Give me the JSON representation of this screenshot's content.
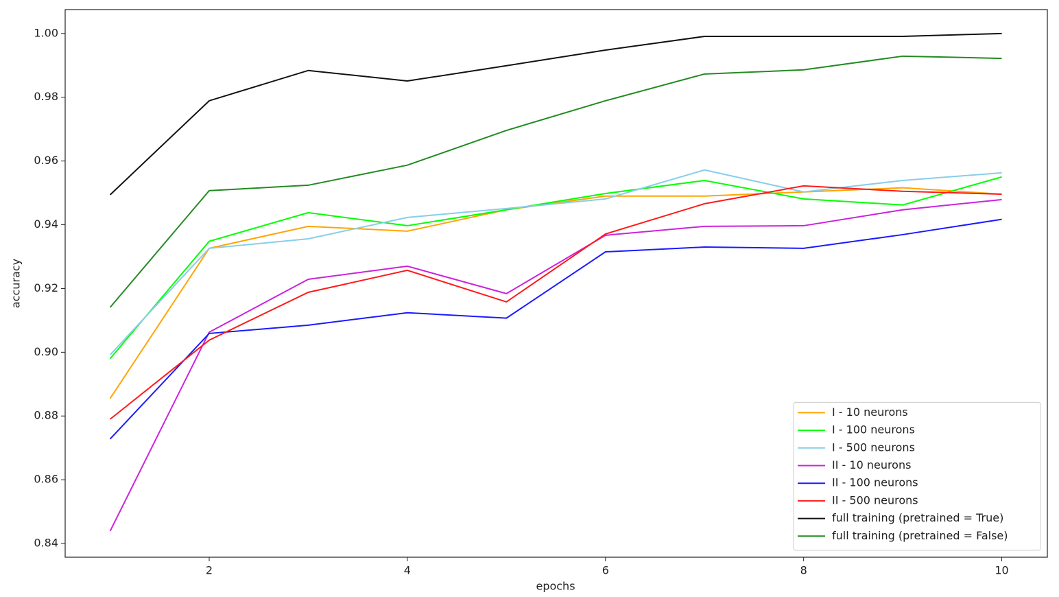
{
  "chart_data": {
    "type": "line",
    "xlabel": "epochs",
    "ylabel": "accuracy",
    "x": [
      1,
      2,
      3,
      4,
      5,
      6,
      7,
      8,
      9,
      10
    ],
    "xlim": [
      0.546,
      10.46
    ],
    "xticks": [
      2,
      4,
      6,
      8,
      10
    ],
    "ylim": [
      0.8357,
      1.0075
    ],
    "yticks": [
      {
        "value": 0.84,
        "label": "0.84"
      },
      {
        "value": 0.86,
        "label": "0.86"
      },
      {
        "value": 0.88,
        "label": "0.88"
      },
      {
        "value": 0.9,
        "label": "0.90"
      },
      {
        "value": 0.92,
        "label": "0.92"
      },
      {
        "value": 0.94,
        "label": "0.94"
      },
      {
        "value": 0.96,
        "label": "0.96"
      },
      {
        "value": 0.98,
        "label": "0.98"
      },
      {
        "value": 1.0,
        "label": "1.00"
      }
    ],
    "legend": "lower right",
    "series": [
      {
        "name": "I - 10 neurons",
        "color": "#ffa500",
        "values": [
          0.8855,
          0.9326,
          0.9395,
          0.938,
          0.9447,
          0.949,
          0.949,
          0.9503,
          0.9516,
          0.9496
        ]
      },
      {
        "name": "I - 100 neurons",
        "color": "#00ff00",
        "values": [
          0.898,
          0.9348,
          0.9438,
          0.9397,
          0.9447,
          0.9498,
          0.9539,
          0.9481,
          0.9462,
          0.955
        ]
      },
      {
        "name": "I - 500 neurons",
        "color": "#87ceeb",
        "values": [
          0.8992,
          0.9326,
          0.9356,
          0.9423,
          0.9451,
          0.9481,
          0.9572,
          0.9503,
          0.9539,
          0.9563
        ]
      },
      {
        "name": "II - 10 neurons",
        "color": "#cc22dd",
        "values": [
          0.8439,
          0.9063,
          0.9229,
          0.927,
          0.9184,
          0.9367,
          0.9395,
          0.9397,
          0.9447,
          0.9479
        ]
      },
      {
        "name": "II - 100 neurons",
        "color": "#1a1aff",
        "values": [
          0.8728,
          0.9059,
          0.9085,
          0.9124,
          0.9107,
          0.9315,
          0.933,
          0.9326,
          0.9369,
          0.9417
        ]
      },
      {
        "name": "II - 500 neurons",
        "color": "#ff1a1a",
        "values": [
          0.879,
          0.9038,
          0.9188,
          0.9257,
          0.9158,
          0.9371,
          0.9466,
          0.9522,
          0.9505,
          0.9496
        ]
      },
      {
        "name": "full training (pretrained = True)",
        "color": "#111111",
        "values": [
          0.9494,
          0.9789,
          0.9884,
          0.9851,
          0.9899,
          0.9948,
          0.9991,
          0.9991,
          0.9991,
          1.0
        ]
      },
      {
        "name": "full training (pretrained = False)",
        "color": "#228b22",
        "values": [
          0.9141,
          0.9507,
          0.9524,
          0.9587,
          0.9696,
          0.9789,
          0.9873,
          0.9886,
          0.9929,
          0.9922
        ]
      }
    ]
  }
}
